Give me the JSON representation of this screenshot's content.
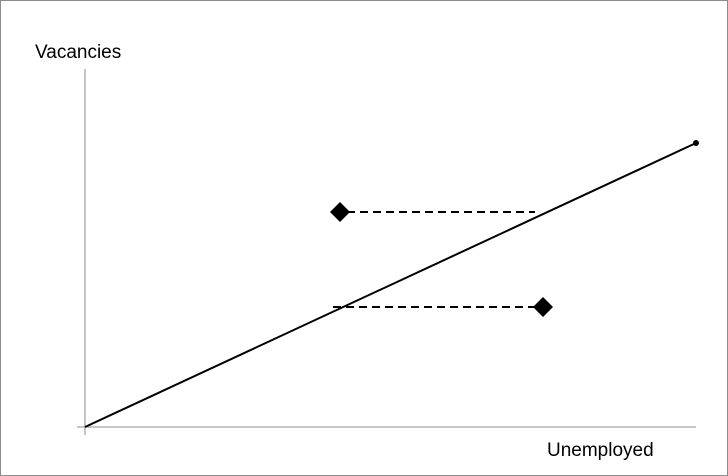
{
  "axes": {
    "y_label": "Vacancies",
    "x_label": "Unemployed"
  },
  "elements": {
    "line": "upward diagonal line from origin",
    "points": [
      {
        "shape": "diamond",
        "dashed_connector": "to the right, meets the line"
      },
      {
        "shape": "diamond",
        "dashed_connector": "to the left, meets the line"
      }
    ]
  },
  "colors": {
    "stroke": "#000000",
    "frame": "#8c8c8c"
  }
}
